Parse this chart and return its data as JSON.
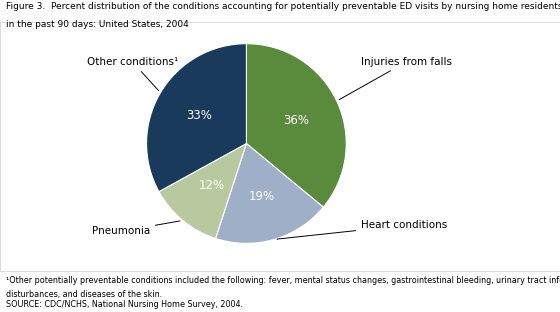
{
  "title_line1": "Figure 3.  Percent distribution of the conditions accounting for potentially preventable ED visits by nursing home residents",
  "title_line2": "in the past 90 days: United States, 2004",
  "slices": [
    36,
    19,
    12,
    33
  ],
  "labels": [
    "Injuries from falls",
    "Heart conditions",
    "Pneumonia",
    "Other conditions¹"
  ],
  "colors": [
    "#5a8a3c",
    "#a0afc8",
    "#b8c9a0",
    "#1a3a5c"
  ],
  "pct_labels": [
    "36%",
    "19%",
    "12%",
    "33%"
  ],
  "footnote1": "¹Other potentially preventable conditions included the following: fever, mental status changes, gastrointestinal bleeding, urinary tract infections, metabolic",
  "footnote2": "disturbances, and diseases of the skin.",
  "source": "SOURCE: CDC/NCHS, National Nursing Home Survey, 2004.",
  "label_fontsize": 7.5,
  "pct_fontsize": 8.5,
  "title_fontsize": 6.5,
  "footnote_fontsize": 5.8
}
